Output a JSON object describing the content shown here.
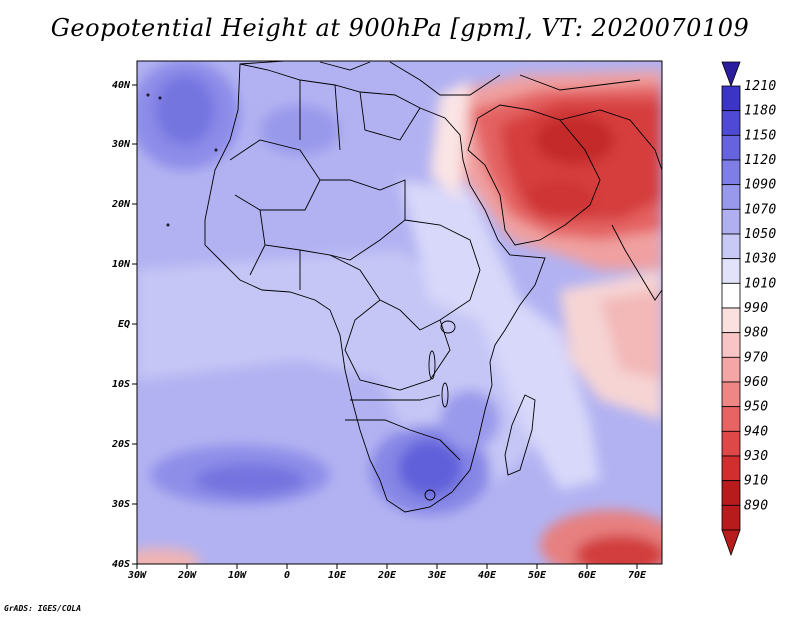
{
  "title": "Geopotential Height at 900hPa [gpm], VT: 2020070109",
  "credit": "GrADS: IGES/COLA",
  "map": {
    "lon_labels": [
      "30W",
      "20W",
      "10W",
      "0",
      "10E",
      "20E",
      "30E",
      "40E",
      "50E",
      "60E",
      "70E"
    ],
    "lat_labels": [
      "40N",
      "30N",
      "20N",
      "10N",
      "EQ",
      "10S",
      "20S",
      "30S",
      "40S"
    ],
    "lon_range": [
      -30,
      75
    ],
    "lat_range": [
      -40,
      45
    ]
  },
  "colorbar": {
    "levels": [
      "1210",
      "1180",
      "1150",
      "1120",
      "1090",
      "1070",
      "1050",
      "1030",
      "1010",
      "990",
      "980",
      "970",
      "960",
      "950",
      "940",
      "930",
      "910",
      "890"
    ],
    "colors": [
      "#2b1e9e",
      "#3b34c4",
      "#4f4ad6",
      "#6563de",
      "#7f7ee6",
      "#9898ec",
      "#b0b0f1",
      "#c9c9f6",
      "#e2e2fa",
      "#ffffff",
      "#fbe0e0",
      "#f8c4c4",
      "#f4a6a6",
      "#ef8686",
      "#e86464",
      "#df4848",
      "#d12f2f",
      "#b71b1b"
    ]
  }
}
